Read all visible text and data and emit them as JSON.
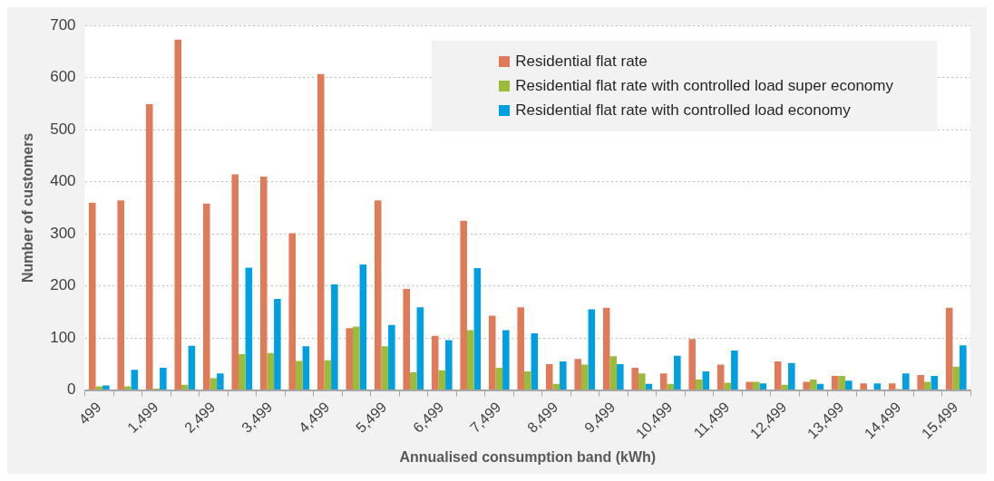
{
  "chart_data": {
    "type": "bar",
    "xlabel": "Annualised consumption band (kWh)",
    "ylabel": "Number of customers",
    "categories": [
      "499",
      null,
      "1,499",
      null,
      "2,499",
      null,
      "3,499",
      null,
      "4,499",
      null,
      "5,499",
      null,
      "6,499",
      null,
      "7,499",
      null,
      "8,499",
      null,
      "9,499",
      null,
      "10,499",
      null,
      "11,499",
      null,
      "12,499",
      null,
      "13,499",
      null,
      "14,499",
      null,
      "15,499"
    ],
    "series": [
      {
        "name": "Residential flat rate",
        "color": "#e07b5a",
        "values": [
          360,
          364,
          549,
          673,
          358,
          414,
          410,
          301,
          607,
          119,
          364,
          194,
          104,
          325,
          143,
          159,
          50,
          60,
          158,
          43,
          32,
          98,
          49,
          16,
          55,
          16,
          27,
          13,
          13,
          29,
          158
        ]
      },
      {
        "name": "Residential flat rate with controlled load super economy",
        "color": "#9bbb3b",
        "values": [
          7,
          7,
          3,
          10,
          23,
          69,
          71,
          56,
          57,
          122,
          84,
          34,
          38,
          115,
          43,
          36,
          12,
          49,
          65,
          32,
          12,
          20,
          14,
          16,
          10,
          20,
          27,
          0,
          2,
          16,
          45
        ]
      },
      {
        "name": "Residential flat rate with controlled load economy",
        "color": "#00a0e0",
        "values": [
          9,
          39,
          43,
          85,
          32,
          235,
          175,
          84,
          203,
          241,
          125,
          159,
          96,
          234,
          115,
          109,
          55,
          155,
          50,
          12,
          66,
          36,
          76,
          13,
          52,
          12,
          18,
          13,
          32,
          27,
          86
        ]
      }
    ],
    "ylim": [
      0,
      700
    ],
    "yticks": [
      0,
      100,
      200,
      300,
      400,
      500,
      600,
      700
    ],
    "grid": "y",
    "legend": "top right"
  }
}
